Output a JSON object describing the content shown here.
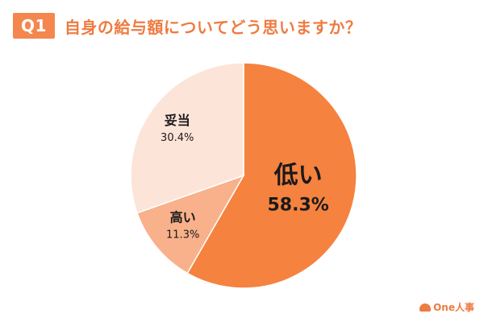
{
  "header": {
    "badge": "Q1",
    "question": "自身の給与額についてどう思いますか？"
  },
  "brand": {
    "name": "One人事",
    "icon": "cloud-logo-icon"
  },
  "colors": {
    "accent": "#ee7b41",
    "badge": "#f4874f",
    "slice_low": "#f5823f",
    "slice_high": "#f8b18a",
    "slice_fair": "#fde4d8"
  },
  "chart_data": {
    "type": "pie",
    "title": "自身の給与額についてどう思いますか？",
    "start": "12 o'clock",
    "direction": "clockwise",
    "slices": [
      {
        "label": "低い",
        "value": 58.3,
        "value_label": "58.3%",
        "color": "#f5823f"
      },
      {
        "label": "高い",
        "value": 11.3,
        "value_label": "11.3%",
        "color": "#f8b18a"
      },
      {
        "label": "妥当",
        "value": 30.4,
        "value_label": "30.4%",
        "color": "#fde4d8"
      }
    ]
  }
}
